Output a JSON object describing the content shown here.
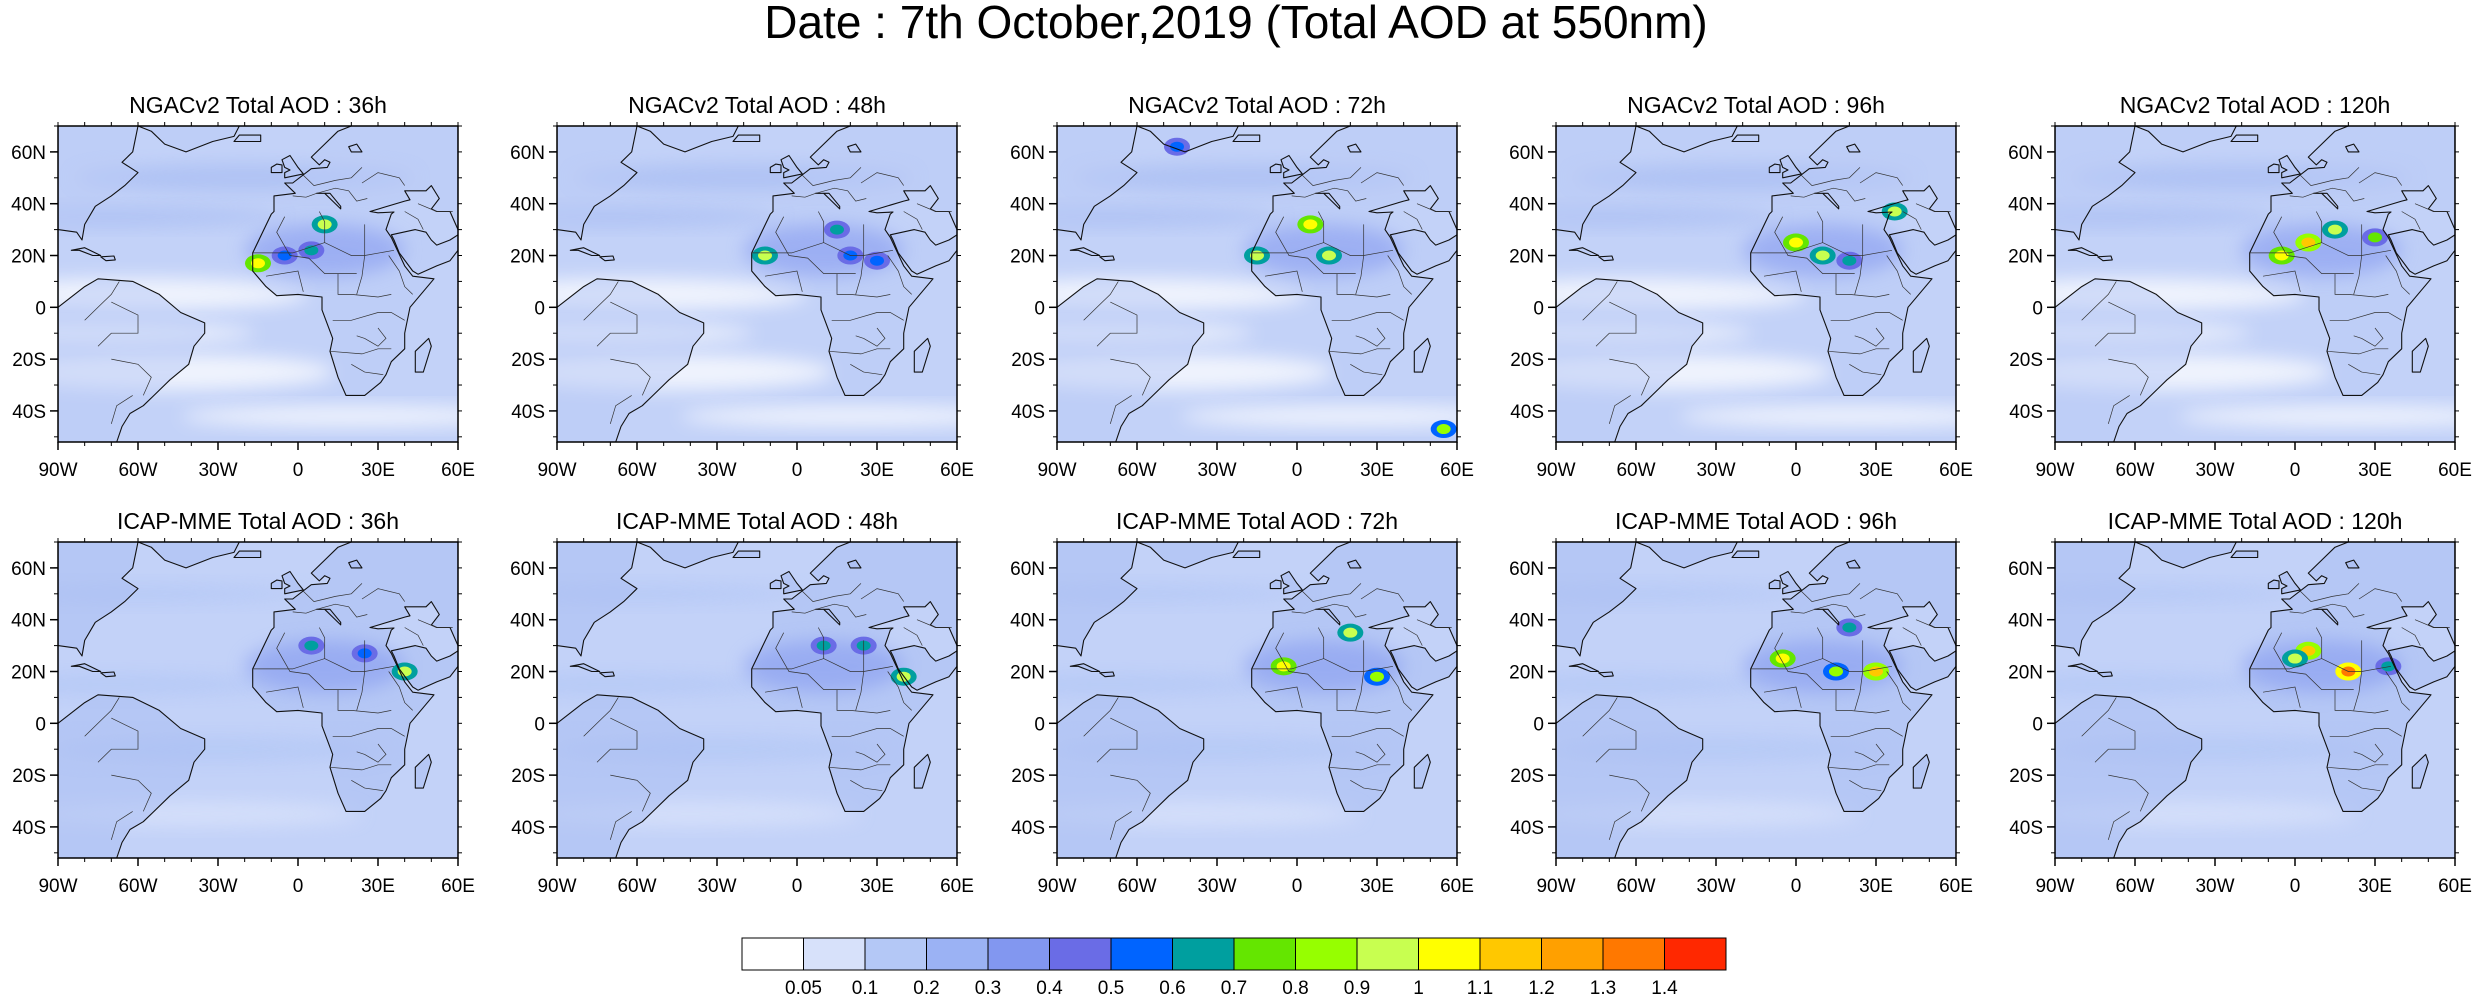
{
  "title": "Date : 7th October,2019 (Total AOD at 550nm)",
  "panels": [
    {
      "row": "NGACv2",
      "title": "NGACv2 Total AOD : 36h",
      "hotspots": [
        [
          -15,
          17,
          1.0
        ],
        [
          10,
          32,
          0.9
        ],
        [
          5,
          22,
          0.6
        ],
        [
          -5,
          20,
          0.5
        ]
      ]
    },
    {
      "row": "NGACv2",
      "title": "NGACv2 Total AOD : 48h",
      "hotspots": [
        [
          -12,
          20,
          0.9
        ],
        [
          15,
          30,
          0.6
        ],
        [
          20,
          20,
          0.5
        ],
        [
          30,
          18,
          0.5
        ]
      ]
    },
    {
      "row": "NGACv2",
      "title": "NGACv2 Total AOD : 72h",
      "hotspots": [
        [
          -15,
          20,
          0.9
        ],
        [
          5,
          32,
          1.0
        ],
        [
          12,
          20,
          0.9
        ],
        [
          -45,
          62,
          0.5
        ],
        [
          55,
          -47,
          0.8
        ]
      ]
    },
    {
      "row": "NGACv2",
      "title": "NGACv2 Total AOD : 96h",
      "hotspots": [
        [
          0,
          25,
          1.0
        ],
        [
          10,
          20,
          0.9
        ],
        [
          37,
          37,
          0.9
        ],
        [
          20,
          18,
          0.6
        ]
      ]
    },
    {
      "row": "NGACv2",
      "title": "NGACv2 Total AOD : 120h",
      "hotspots": [
        [
          5,
          25,
          1.1
        ],
        [
          -5,
          20,
          1.0
        ],
        [
          15,
          30,
          0.9
        ],
        [
          30,
          27,
          0.7
        ]
      ]
    },
    {
      "row": "ICAP-MME",
      "title": "ICAP-MME Total AOD : 36h",
      "hotspots": [
        [
          40,
          20,
          0.9
        ],
        [
          5,
          30,
          0.6
        ],
        [
          25,
          27,
          0.5
        ]
      ]
    },
    {
      "row": "ICAP-MME",
      "title": "ICAP-MME Total AOD : 48h",
      "hotspots": [
        [
          40,
          18,
          0.9
        ],
        [
          10,
          30,
          0.6
        ],
        [
          25,
          30,
          0.6
        ]
      ]
    },
    {
      "row": "ICAP-MME",
      "title": "ICAP-MME Total AOD : 72h",
      "hotspots": [
        [
          -5,
          22,
          1.0
        ],
        [
          20,
          35,
          0.9
        ],
        [
          30,
          18,
          0.8
        ]
      ]
    },
    {
      "row": "ICAP-MME",
      "title": "ICAP-MME Total AOD : 96h",
      "hotspots": [
        [
          -5,
          25,
          1.0
        ],
        [
          30,
          20,
          1.1
        ],
        [
          15,
          20,
          0.8
        ],
        [
          20,
          37,
          0.6
        ]
      ]
    },
    {
      "row": "ICAP-MME",
      "title": "ICAP-MME Total AOD : 120h",
      "hotspots": [
        [
          5,
          28,
          1.1
        ],
        [
          20,
          20,
          1.3
        ],
        [
          0,
          25,
          0.9
        ],
        [
          35,
          22,
          0.6
        ]
      ]
    }
  ],
  "axes": {
    "lon_ticks": [
      "90W",
      "60W",
      "30W",
      "0",
      "30E",
      "60E"
    ],
    "lat_ticks": [
      "60N",
      "40N",
      "20N",
      "0",
      "20S",
      "40S"
    ],
    "lon_range": [
      -90,
      60
    ],
    "lat_range": [
      -52,
      70
    ]
  },
  "colorbar": {
    "labels": [
      "0.05",
      "0.1",
      "0.2",
      "0.3",
      "0.4",
      "0.5",
      "0.6",
      "0.7",
      "0.8",
      "0.9",
      "1",
      "1.1",
      "1.2",
      "1.3",
      "1.4"
    ],
    "colors": [
      "#ffffff",
      "#d7e1fa",
      "#b4c8f6",
      "#9bb2f4",
      "#8297f0",
      "#6a6ce6",
      "#0064ff",
      "#009f9f",
      "#64e600",
      "#96ff00",
      "#c8ff50",
      "#ffff00",
      "#ffc800",
      "#ffa000",
      "#ff7800",
      "#ff2800"
    ]
  },
  "colors": {
    "ocean": "#c3d2f8",
    "land": "#a9bdf3",
    "coast": "#111111"
  }
}
